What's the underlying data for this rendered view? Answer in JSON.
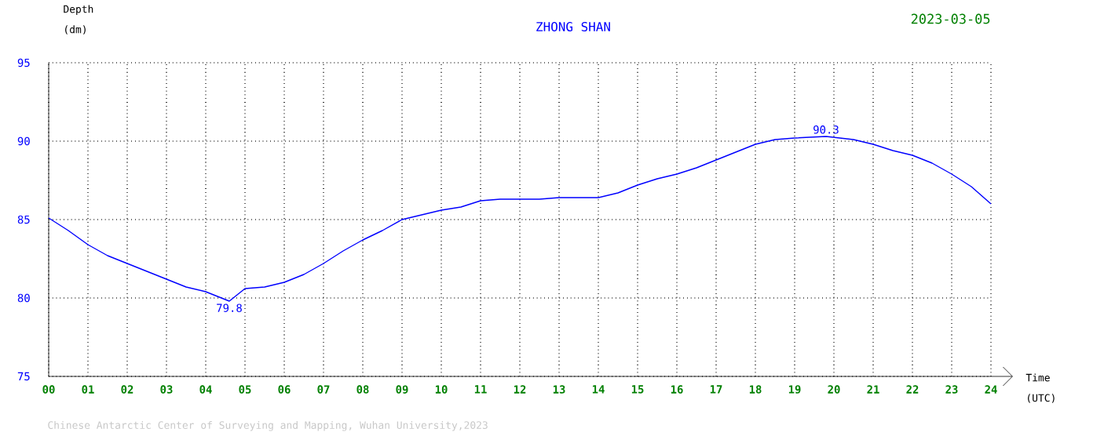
{
  "chart_data": {
    "type": "line",
    "title": "ZHONG SHAN",
    "subtitle": "2023-03-05",
    "xlabel": "Time (UTC)",
    "ylabel": "Depth (dm)",
    "x": [
      0,
      0.5,
      1,
      1.5,
      2,
      2.5,
      3,
      3.5,
      4,
      4.6,
      5,
      5.5,
      6,
      6.5,
      7,
      7.5,
      8,
      8.5,
      9,
      9.5,
      10,
      10.5,
      11,
      11.5,
      12,
      12.5,
      13,
      13.5,
      14,
      14.5,
      15,
      15.5,
      16,
      16.5,
      17,
      17.5,
      18,
      18.5,
      19,
      19.8,
      20.5,
      21,
      21.5,
      22,
      22.5,
      23,
      23.5,
      24
    ],
    "series": [
      {
        "color": "#0000ff",
        "values": [
          85.1,
          84.3,
          83.4,
          82.7,
          82.2,
          81.7,
          81.2,
          80.7,
          80.4,
          79.8,
          80.6,
          80.7,
          81.0,
          81.5,
          82.2,
          83.0,
          83.7,
          84.3,
          85.0,
          85.3,
          85.6,
          85.8,
          86.2,
          86.3,
          86.3,
          86.3,
          86.4,
          86.4,
          86.4,
          86.7,
          87.2,
          87.6,
          87.9,
          88.3,
          88.8,
          89.3,
          89.8,
          90.1,
          90.2,
          90.3,
          90.1,
          89.8,
          89.4,
          89.1,
          88.6,
          87.9,
          87.1,
          86.0
        ]
      }
    ],
    "xlim": [
      0,
      24
    ],
    "ylim": [
      75,
      95
    ],
    "xticks": [
      {
        "value": 0,
        "label": "00"
      },
      {
        "value": 1,
        "label": "01"
      },
      {
        "value": 2,
        "label": "02"
      },
      {
        "value": 3,
        "label": "03"
      },
      {
        "value": 4,
        "label": "04"
      },
      {
        "value": 5,
        "label": "05"
      },
      {
        "value": 6,
        "label": "06"
      },
      {
        "value": 7,
        "label": "07"
      },
      {
        "value": 8,
        "label": "08"
      },
      {
        "value": 9,
        "label": "09"
      },
      {
        "value": 10,
        "label": "10"
      },
      {
        "value": 11,
        "label": "11"
      },
      {
        "value": 12,
        "label": "12"
      },
      {
        "value": 13,
        "label": "13"
      },
      {
        "value": 14,
        "label": "14"
      },
      {
        "value": 15,
        "label": "15"
      },
      {
        "value": 16,
        "label": "16"
      },
      {
        "value": 17,
        "label": "17"
      },
      {
        "value": 18,
        "label": "18"
      },
      {
        "value": 19,
        "label": "19"
      },
      {
        "value": 20,
        "label": "20"
      },
      {
        "value": 21,
        "label": "21"
      },
      {
        "value": 22,
        "label": "22"
      },
      {
        "value": 23,
        "label": "23"
      },
      {
        "value": 24,
        "label": "24"
      }
    ],
    "yticks": [
      75,
      80,
      85,
      90,
      95
    ],
    "grid": true,
    "marker": "none",
    "line_style": "solid",
    "annotations": [
      {
        "text": "79.8",
        "x": 4.6,
        "y": 79.8
      },
      {
        "text": "90.3",
        "x": 19.8,
        "y": 90.3
      },
      "Chinese Antarctic Center of Surveying and Mapping, Wuhan University,2023"
    ]
  }
}
